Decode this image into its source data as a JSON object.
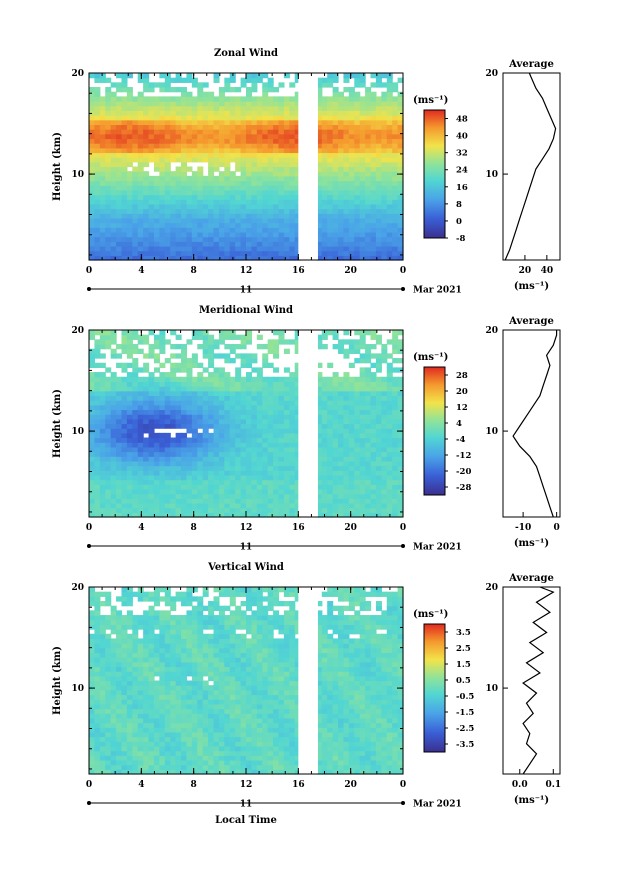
{
  "footer": {
    "xlabel": "Local Time"
  },
  "chart_data": [
    {
      "type": "heatmap",
      "title": "Zonal Wind",
      "ylabel": "Height (km)",
      "yticks": [
        "20",
        "10"
      ],
      "ylim": [
        1.5,
        20
      ],
      "xticks": [
        "0",
        "4",
        "8",
        "12",
        "16",
        "20",
        "0"
      ],
      "xlim": [
        0,
        24
      ],
      "date_day": "11",
      "date_month_year": "Mar 2021",
      "gap_hours": [
        16,
        17.5
      ],
      "colorbar": {
        "unit": "(ms⁻¹)",
        "ticks": [
          "48",
          "40",
          "32",
          "24",
          "16",
          "8",
          "0",
          "-8"
        ],
        "range": [
          -8,
          52
        ]
      },
      "average": {
        "title": "Average",
        "unit": "(ms⁻¹)",
        "xticks": [
          "20",
          "40"
        ],
        "yticks": [
          "20",
          "10"
        ],
        "xlim": [
          0,
          52
        ],
        "profile": [
          [
            1.5,
            2
          ],
          [
            2.5,
            6
          ],
          [
            3.5,
            9
          ],
          [
            4.5,
            12
          ],
          [
            5.5,
            15
          ],
          [
            6.5,
            18
          ],
          [
            7.5,
            21
          ],
          [
            8.5,
            24
          ],
          [
            9.5,
            27
          ],
          [
            10.5,
            30
          ],
          [
            11.5,
            36
          ],
          [
            12.5,
            42
          ],
          [
            13.5,
            46
          ],
          [
            14.5,
            48
          ],
          [
            15.5,
            44
          ],
          [
            16.5,
            40
          ],
          [
            17.5,
            36
          ],
          [
            18.5,
            30
          ],
          [
            19.5,
            26
          ],
          [
            20,
            24
          ]
        ]
      }
    },
    {
      "type": "heatmap",
      "title": "Meridional Wind",
      "ylabel": "Height (km)",
      "yticks": [
        "20",
        "10"
      ],
      "ylim": [
        1.5,
        20
      ],
      "xticks": [
        "0",
        "4",
        "8",
        "12",
        "16",
        "20",
        "0"
      ],
      "xlim": [
        0,
        24
      ],
      "date_day": "11",
      "date_month_year": "Mar 2021",
      "gap_hours": [
        16,
        17.5
      ],
      "colorbar": {
        "unit": "(ms⁻¹)",
        "ticks": [
          "28",
          "20",
          "12",
          "4",
          "-4",
          "-12",
          "-20",
          "-28"
        ],
        "range": [
          -32,
          32
        ]
      },
      "average": {
        "title": "Average",
        "unit": "(ms⁻¹)",
        "xticks": [
          "-10",
          "0"
        ],
        "yticks": [
          "20",
          "10"
        ],
        "xlim": [
          -16,
          1
        ],
        "profile": [
          [
            1.5,
            -1
          ],
          [
            2.5,
            -2
          ],
          [
            3.5,
            -3
          ],
          [
            4.5,
            -4
          ],
          [
            5.5,
            -5
          ],
          [
            6.5,
            -6
          ],
          [
            7.5,
            -8
          ],
          [
            8.5,
            -11
          ],
          [
            9.5,
            -13
          ],
          [
            10.5,
            -11
          ],
          [
            11.5,
            -9
          ],
          [
            12.5,
            -7
          ],
          [
            13.5,
            -5
          ],
          [
            14.5,
            -4
          ],
          [
            15.5,
            -3
          ],
          [
            16.5,
            -2
          ],
          [
            17.5,
            -3
          ],
          [
            18.5,
            -1
          ],
          [
            19.5,
            0
          ],
          [
            20,
            0
          ]
        ]
      }
    },
    {
      "type": "heatmap",
      "title": "Vertical Wind",
      "ylabel": "Height (km)",
      "yticks": [
        "20",
        "10"
      ],
      "ylim": [
        1.5,
        20
      ],
      "xticks": [
        "0",
        "4",
        "8",
        "12",
        "16",
        "20",
        "0"
      ],
      "xlim": [
        0,
        24
      ],
      "date_day": "11",
      "date_month_year": "Mar 2021",
      "gap_hours": [
        16,
        17.5
      ],
      "colorbar": {
        "unit": "(ms⁻¹)",
        "ticks": [
          "3.5",
          "2.5",
          "1.5",
          "0.5",
          "-0.5",
          "-1.5",
          "-2.5",
          "-3.5"
        ],
        "range": [
          -4,
          4
        ]
      },
      "average": {
        "title": "Average",
        "unit": "(ms⁻¹)",
        "xticks": [
          "0.0",
          "0.1"
        ],
        "yticks": [
          "20",
          "10"
        ],
        "xlim": [
          -0.05,
          0.12
        ],
        "profile": [
          [
            1.5,
            0.01
          ],
          [
            2.5,
            0.03
          ],
          [
            3.5,
            0.05
          ],
          [
            4.5,
            0.02
          ],
          [
            5.5,
            0.03
          ],
          [
            6.5,
            0.01
          ],
          [
            7.5,
            0.04
          ],
          [
            8.5,
            0.02
          ],
          [
            9.5,
            0.05
          ],
          [
            10.5,
            0.01
          ],
          [
            11.5,
            0.06
          ],
          [
            12.5,
            0.02
          ],
          [
            13.5,
            0.07
          ],
          [
            14.5,
            0.03
          ],
          [
            15.5,
            0.08
          ],
          [
            16.5,
            0.04
          ],
          [
            17.5,
            0.09
          ],
          [
            18.5,
            0.05
          ],
          [
            19.5,
            0.1
          ],
          [
            20,
            0.06
          ]
        ]
      }
    }
  ]
}
